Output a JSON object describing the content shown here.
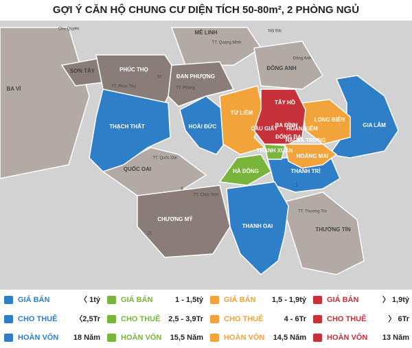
{
  "title": "GỢI Ý CĂN HỘ CHUNG CƯ DIỆN TÍCH 50-80m², 2 PHÒNG NGỦ",
  "map": {
    "labels": [
      "Chu Quyên",
      "MÊ LINH",
      "TT. Quang Minh",
      "Nội Bài",
      "SƠN TÂY",
      "PHÚC THỌ",
      "ĐAN PHƯỢNG",
      "ĐÔNG ANH",
      "Đông Anh",
      "BA VÌ",
      "TT. Phúc Thọ",
      "TT. Phùng",
      "TÂY HỒ",
      "TỪ LIÊM",
      "LONG BIÊN",
      "CẦU GIẤY",
      "BA ĐÌNH",
      "HOÀN KIẾM",
      "ĐỐNG ĐA",
      "HAI BÀ TRƯNG",
      "THẠCH THẤT",
      "HOÀI ĐỨC",
      "GIA LÂM",
      "THANH XUÂN",
      "HOÀNG MAI",
      "HÀ ĐÔNG",
      "TT. Quốc Oai",
      "QUỐC OAI",
      "THANH TRÌ",
      "TT. Chúc Sơn",
      "CHƯƠNG MỸ",
      "THANH OAI",
      "TT. Thường Tín",
      "THƯỜNG TÍN",
      "32",
      "6",
      "21",
      "1"
    ]
  },
  "legend": [
    {
      "rows": [
        {
          "label": "GIÁ BÁN",
          "value": "〈 1tỷ"
        },
        {
          "label": "CHO THUÊ",
          "value": "〈2,5Tr"
        },
        {
          "label": "HOÀN VỐN",
          "value": "18 Năm"
        }
      ]
    },
    {
      "rows": [
        {
          "label": "GIÁ BÁN",
          "value": "1 - 1,5tỷ"
        },
        {
          "label": "CHO THUÊ",
          "value": "2,5 - 3,9Tr"
        },
        {
          "label": "HOÀN VỐN",
          "value": "15,5 Năm"
        }
      ]
    },
    {
      "rows": [
        {
          "label": "GIÁ BÁN",
          "value": "1,5 - 1,9tỷ"
        },
        {
          "label": "CHO THUÊ",
          "value": "4 - 6Tr"
        },
        {
          "label": "HOÀN VỐN",
          "value": "14,5 Năm"
        }
      ]
    },
    {
      "rows": [
        {
          "label": "GIÁ BÁN",
          "value": "〉 1,9tỷ"
        },
        {
          "label": "CHO THUÊ",
          "value": "〉 6Tr"
        },
        {
          "label": "HOÀN VỐN",
          "value": "13 Năm"
        }
      ]
    }
  ]
}
